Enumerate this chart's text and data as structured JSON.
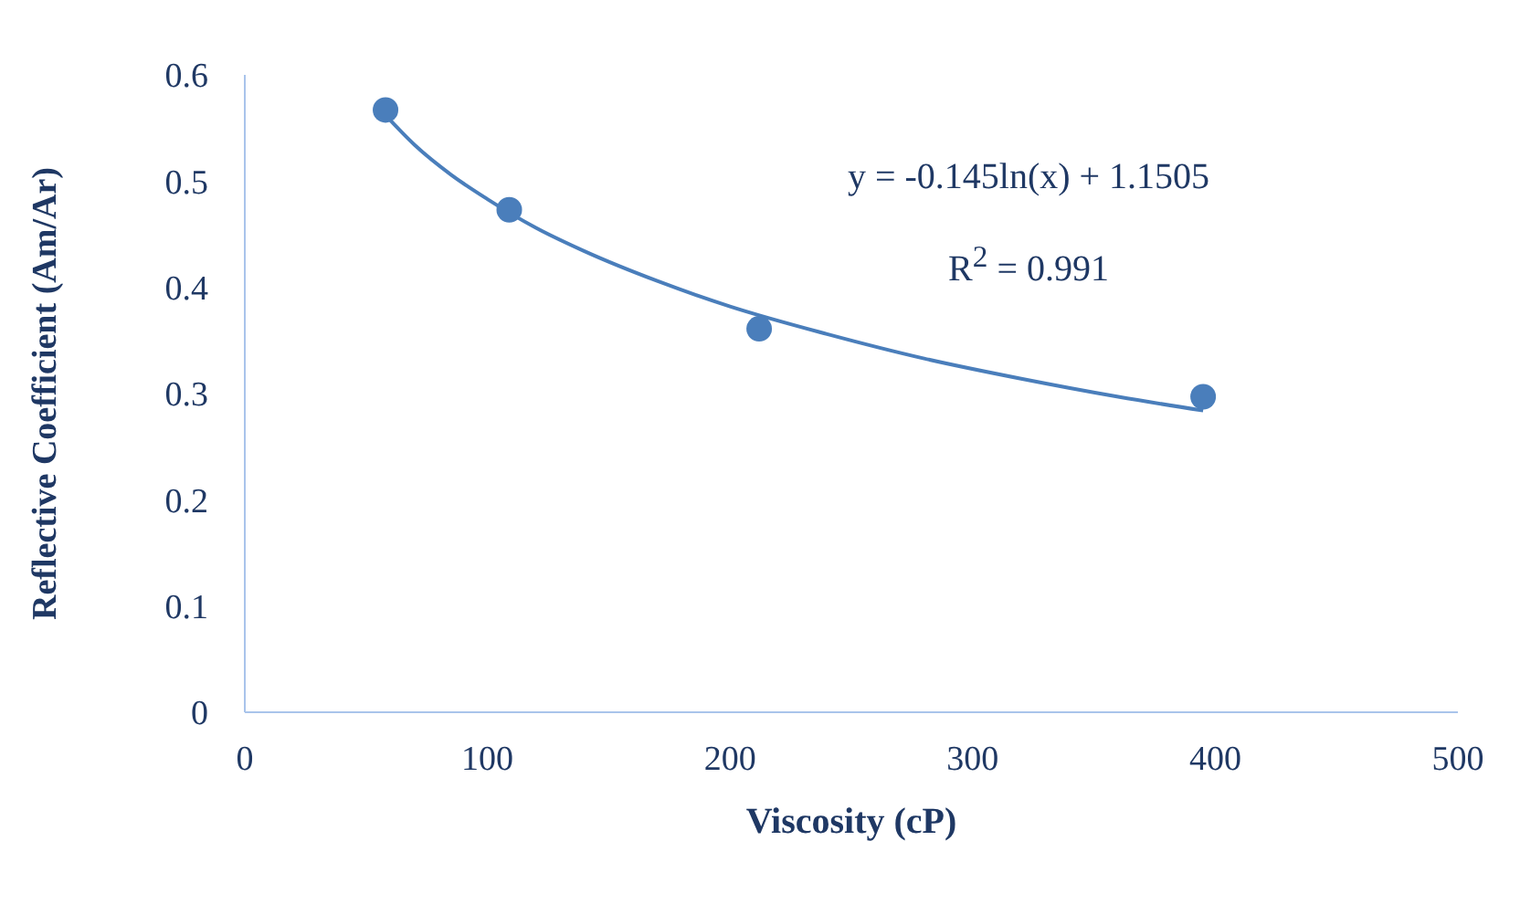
{
  "chart_data": {
    "type": "scatter",
    "xlabel": "Viscosity (cP)",
    "ylabel": "Reflective Coefficient (Am/Ar)",
    "x": [
      58,
      109,
      212,
      395
    ],
    "series": [
      {
        "color": "#4a7ebb",
        "marker": "circle",
        "values": [
          0.567,
          0.473,
          0.361,
          0.297
        ]
      },
      {
        "type": "line",
        "color": "#4a7ebb",
        "x": [
          58,
          70,
          85,
          100,
          120,
          140,
          170,
          200,
          240,
          280,
          320,
          360,
          395
        ],
        "values": [
          0.562,
          0.534,
          0.506,
          0.483,
          0.456,
          0.434,
          0.406,
          0.382,
          0.356,
          0.333,
          0.314,
          0.297,
          0.284
        ]
      }
    ],
    "xlim": [
      0,
      500
    ],
    "xticks": [
      0,
      100,
      200,
      300,
      400,
      500
    ],
    "ylim": [
      0,
      0.6
    ],
    "yticks": [
      0,
      0.1,
      0.2,
      0.3,
      0.4,
      0.5,
      0.6
    ],
    "grid": false,
    "annotations": [
      "y = -0.145ln(x) + 1.1505",
      "R$^{2}$ = 0.991"
    ]
  }
}
